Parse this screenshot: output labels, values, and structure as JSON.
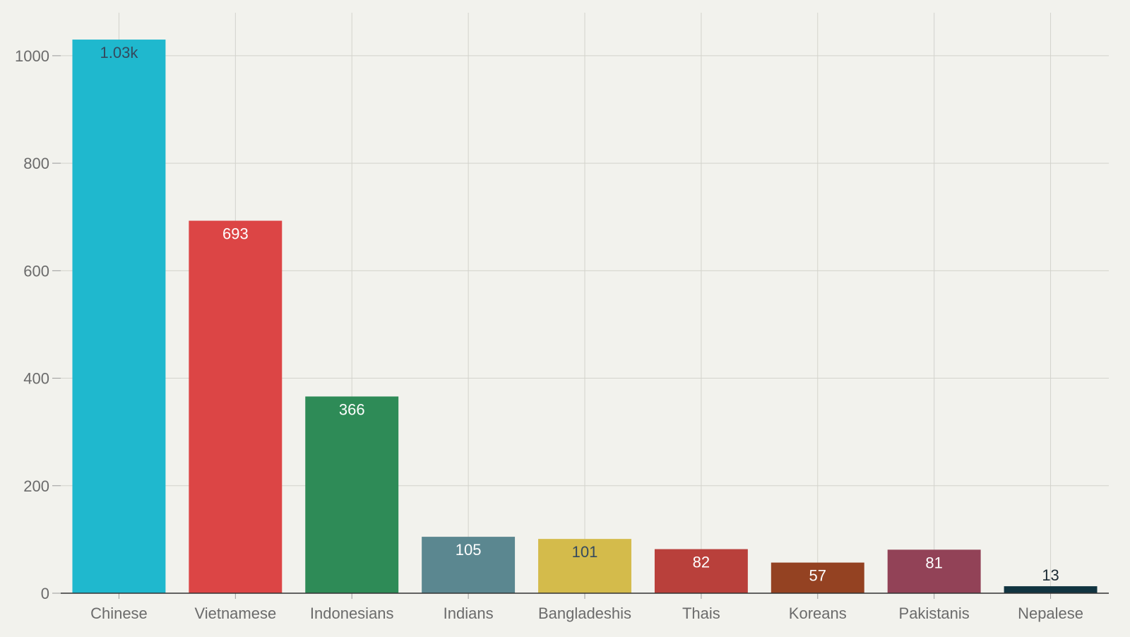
{
  "chart_data": {
    "type": "bar",
    "title": "",
    "xlabel": "",
    "ylabel": "",
    "categories": [
      "Chinese",
      "Vietnamese",
      "Indonesians",
      "Indians",
      "Bangladeshis",
      "Thais",
      "Koreans",
      "Pakistanis",
      "Nepalese"
    ],
    "values": [
      1030,
      693,
      366,
      105,
      101,
      82,
      57,
      81,
      13
    ],
    "data_labels": [
      "1.03k",
      "693",
      "366",
      "105",
      "101",
      "82",
      "57",
      "81",
      "13"
    ],
    "colors": [
      "#1fb8ce",
      "#dc4545",
      "#2e8b57",
      "#5b8790",
      "#d4bb4b",
      "#b9403b",
      "#944222",
      "#924257",
      "#113440"
    ],
    "label_colors": [
      "#34495e",
      "#ffffff",
      "#ffffff",
      "#ffffff",
      "#34495e",
      "#ffffff",
      "#ffffff",
      "#ffffff",
      "#1b2b34"
    ],
    "ylim": [
      0,
      1080
    ],
    "yticks": [
      0,
      200,
      400,
      600,
      800,
      1000
    ],
    "grid": true,
    "legend": "none"
  }
}
